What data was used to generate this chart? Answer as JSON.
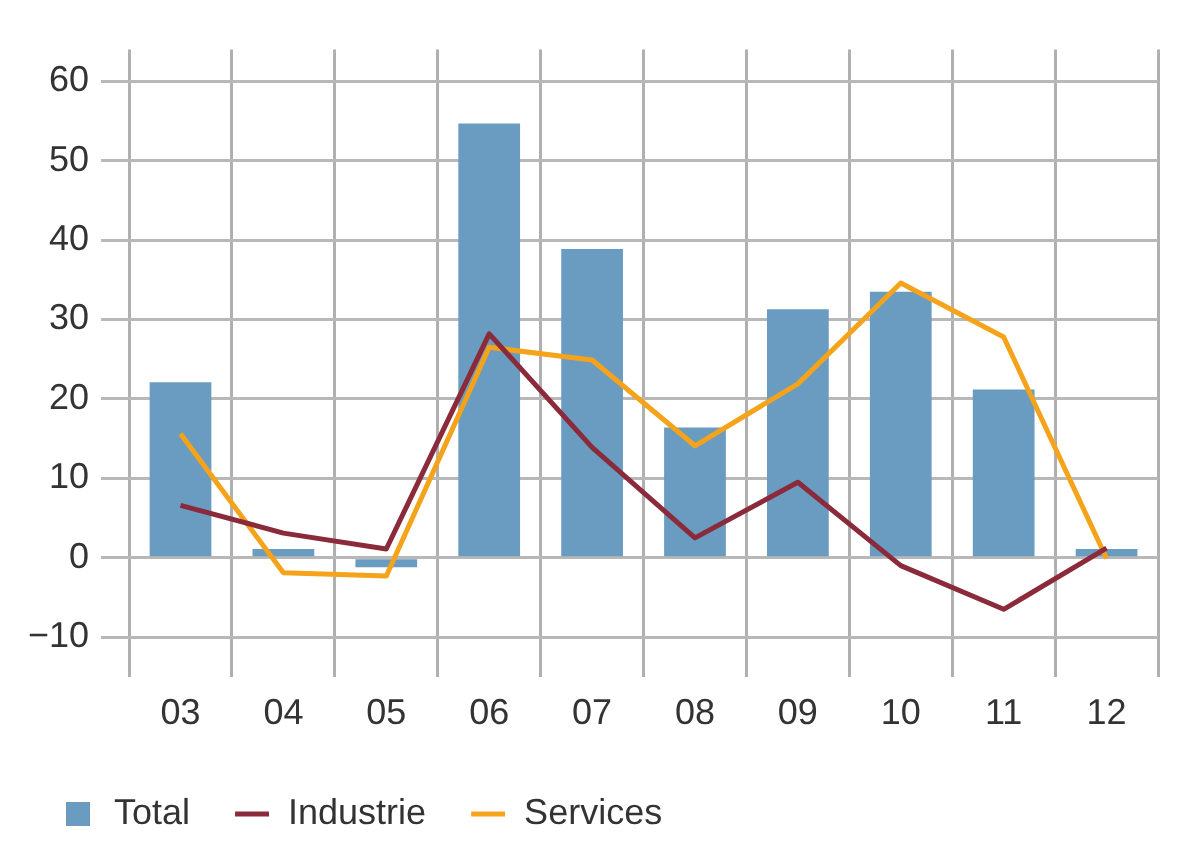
{
  "chart_data": {
    "type": "bar",
    "categories": [
      "03",
      "04",
      "05",
      "06",
      "07",
      "08",
      "09",
      "10",
      "11",
      "12"
    ],
    "series": [
      {
        "name": "Total",
        "color": "#6a9bc0",
        "values": [
          22.1,
          1.1,
          -1.2,
          54.7,
          38.9,
          16.4,
          31.3,
          33.5,
          21.2,
          1.1
        ]
      },
      {
        "name": "Industrie",
        "type": "line",
        "color": "#8b2a3a",
        "values": [
          6.6,
          3.1,
          1.1,
          28.2,
          13.9,
          2.5,
          9.5,
          -1.0,
          -6.5,
          1.2
        ]
      },
      {
        "name": "Services",
        "type": "line",
        "color": "#f5a31a",
        "values": [
          15.6,
          -1.9,
          -2.3,
          26.5,
          24.9,
          14.1,
          21.9,
          34.6,
          27.8,
          -0.1
        ]
      }
    ],
    "ylim": [
      -15,
      64
    ],
    "yticks": [
      -10,
      0,
      10,
      20,
      30,
      40,
      50,
      60
    ],
    "grid": true,
    "legend": "bottom",
    "marker": "none",
    "line_style": "solid"
  }
}
